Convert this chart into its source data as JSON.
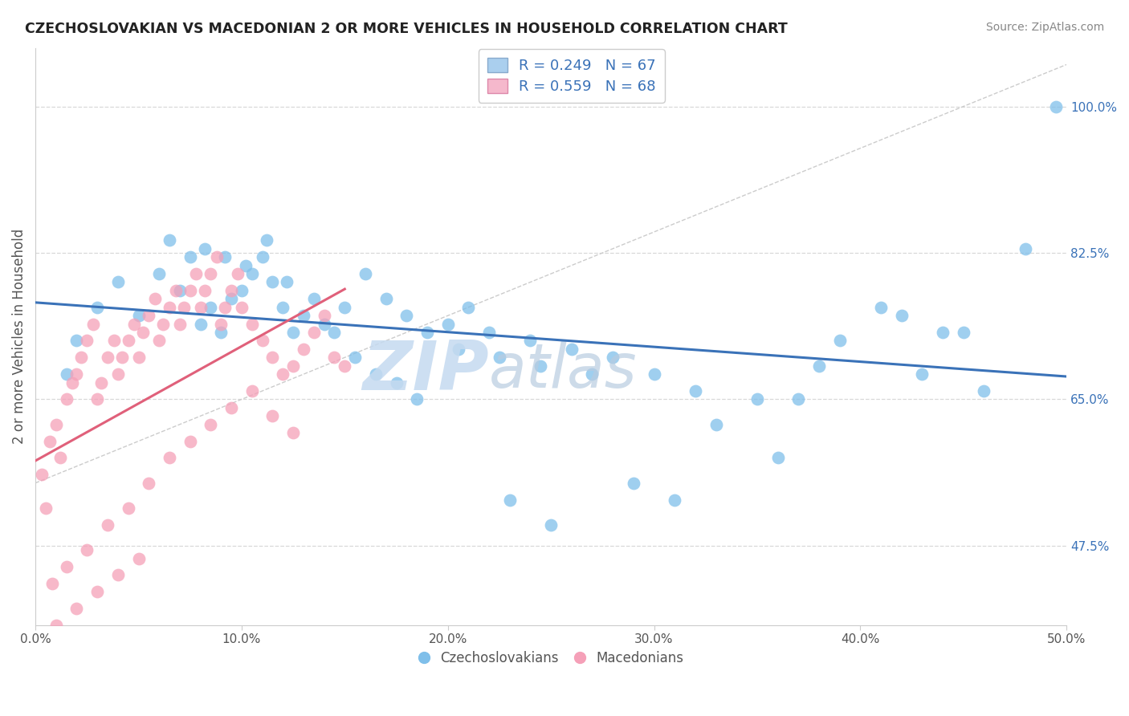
{
  "title": "CZECHOSLOVAKIAN VS MACEDONIAN 2 OR MORE VEHICLES IN HOUSEHOLD CORRELATION CHART",
  "source": "Source: ZipAtlas.com",
  "ylabel": "2 or more Vehicles in Household",
  "xlim": [
    0.0,
    50.0
  ],
  "ylim": [
    38.0,
    107.0
  ],
  "x_ticks": [
    0,
    10,
    20,
    30,
    40,
    50
  ],
  "y_ticks": [
    47.5,
    65.0,
    82.5,
    100.0
  ],
  "blue_color": "#7fbfea",
  "blue_edge_color": "#7fbfea",
  "pink_color": "#f5a0b8",
  "pink_edge_color": "#f5a0b8",
  "blue_line_color": "#3a72b8",
  "pink_line_color": "#e0607a",
  "diag_line_color": "#cccccc",
  "grid_color": "#d8d8d8",
  "y_tick_color": "#3a72b8",
  "x_tick_color": "#555555",
  "title_color": "#222222",
  "source_color": "#888888",
  "ylabel_color": "#555555",
  "legend_text_color": "#3a72b8",
  "watermark_zip_color": "#c5daf0",
  "watermark_atlas_color": "#b8cce0",
  "blue_r": 0.249,
  "blue_n": 67,
  "pink_r": 0.559,
  "pink_n": 68,
  "blue_scatter_x": [
    1.5,
    2.0,
    3.0,
    4.0,
    5.0,
    6.0,
    7.0,
    7.5,
    8.0,
    8.5,
    9.0,
    9.5,
    10.0,
    10.5,
    11.0,
    11.5,
    12.0,
    12.5,
    13.0,
    14.0,
    15.0,
    16.0,
    17.0,
    18.0,
    19.0,
    20.0,
    21.0,
    22.0,
    24.0,
    26.0,
    28.0,
    30.0,
    32.0,
    35.0,
    38.0,
    42.0,
    44.0,
    48.0,
    49.5,
    6.5,
    8.2,
    9.2,
    10.2,
    11.2,
    12.2,
    13.5,
    14.5,
    15.5,
    16.5,
    17.5,
    18.5,
    20.5,
    22.5,
    24.5,
    27.0,
    29.0,
    33.0,
    36.0,
    39.0,
    43.0,
    46.0,
    31.0,
    23.0,
    25.0,
    37.0,
    41.0,
    45.0
  ],
  "blue_scatter_y": [
    68.0,
    72.0,
    76.0,
    79.0,
    75.0,
    80.0,
    78.0,
    82.0,
    74.0,
    76.0,
    73.0,
    77.0,
    78.0,
    80.0,
    82.0,
    79.0,
    76.0,
    73.0,
    75.0,
    74.0,
    76.0,
    80.0,
    77.0,
    75.0,
    73.0,
    74.0,
    76.0,
    73.0,
    72.0,
    71.0,
    70.0,
    68.0,
    66.0,
    65.0,
    69.0,
    75.0,
    73.0,
    83.0,
    100.0,
    84.0,
    83.0,
    82.0,
    81.0,
    84.0,
    79.0,
    77.0,
    73.0,
    70.0,
    68.0,
    67.0,
    65.0,
    71.0,
    70.0,
    69.0,
    68.0,
    55.0,
    62.0,
    58.0,
    72.0,
    68.0,
    66.0,
    53.0,
    53.0,
    50.0,
    65.0,
    76.0,
    73.0
  ],
  "pink_scatter_x": [
    0.3,
    0.5,
    0.7,
    1.0,
    1.2,
    1.5,
    1.8,
    2.0,
    2.2,
    2.5,
    2.8,
    3.0,
    3.2,
    3.5,
    3.8,
    4.0,
    4.2,
    4.5,
    4.8,
    5.0,
    5.2,
    5.5,
    5.8,
    6.0,
    6.2,
    6.5,
    6.8,
    7.0,
    7.2,
    7.5,
    7.8,
    8.0,
    8.2,
    8.5,
    8.8,
    9.0,
    9.2,
    9.5,
    9.8,
    10.0,
    10.5,
    11.0,
    11.5,
    12.0,
    12.5,
    13.0,
    13.5,
    14.0,
    15.0,
    0.8,
    1.5,
    2.5,
    3.5,
    4.5,
    5.5,
    6.5,
    7.5,
    8.5,
    9.5,
    10.5,
    11.5,
    12.5,
    14.5,
    1.0,
    2.0,
    3.0,
    4.0,
    5.0
  ],
  "pink_scatter_y": [
    56.0,
    52.0,
    60.0,
    62.0,
    58.0,
    65.0,
    67.0,
    68.0,
    70.0,
    72.0,
    74.0,
    65.0,
    67.0,
    70.0,
    72.0,
    68.0,
    70.0,
    72.0,
    74.0,
    70.0,
    73.0,
    75.0,
    77.0,
    72.0,
    74.0,
    76.0,
    78.0,
    74.0,
    76.0,
    78.0,
    80.0,
    76.0,
    78.0,
    80.0,
    82.0,
    74.0,
    76.0,
    78.0,
    80.0,
    76.0,
    74.0,
    72.0,
    70.0,
    68.0,
    69.0,
    71.0,
    73.0,
    75.0,
    69.0,
    43.0,
    45.0,
    47.0,
    50.0,
    52.0,
    55.0,
    58.0,
    60.0,
    62.0,
    64.0,
    66.0,
    63.0,
    61.0,
    70.0,
    38.0,
    40.0,
    42.0,
    44.0,
    46.0
  ]
}
